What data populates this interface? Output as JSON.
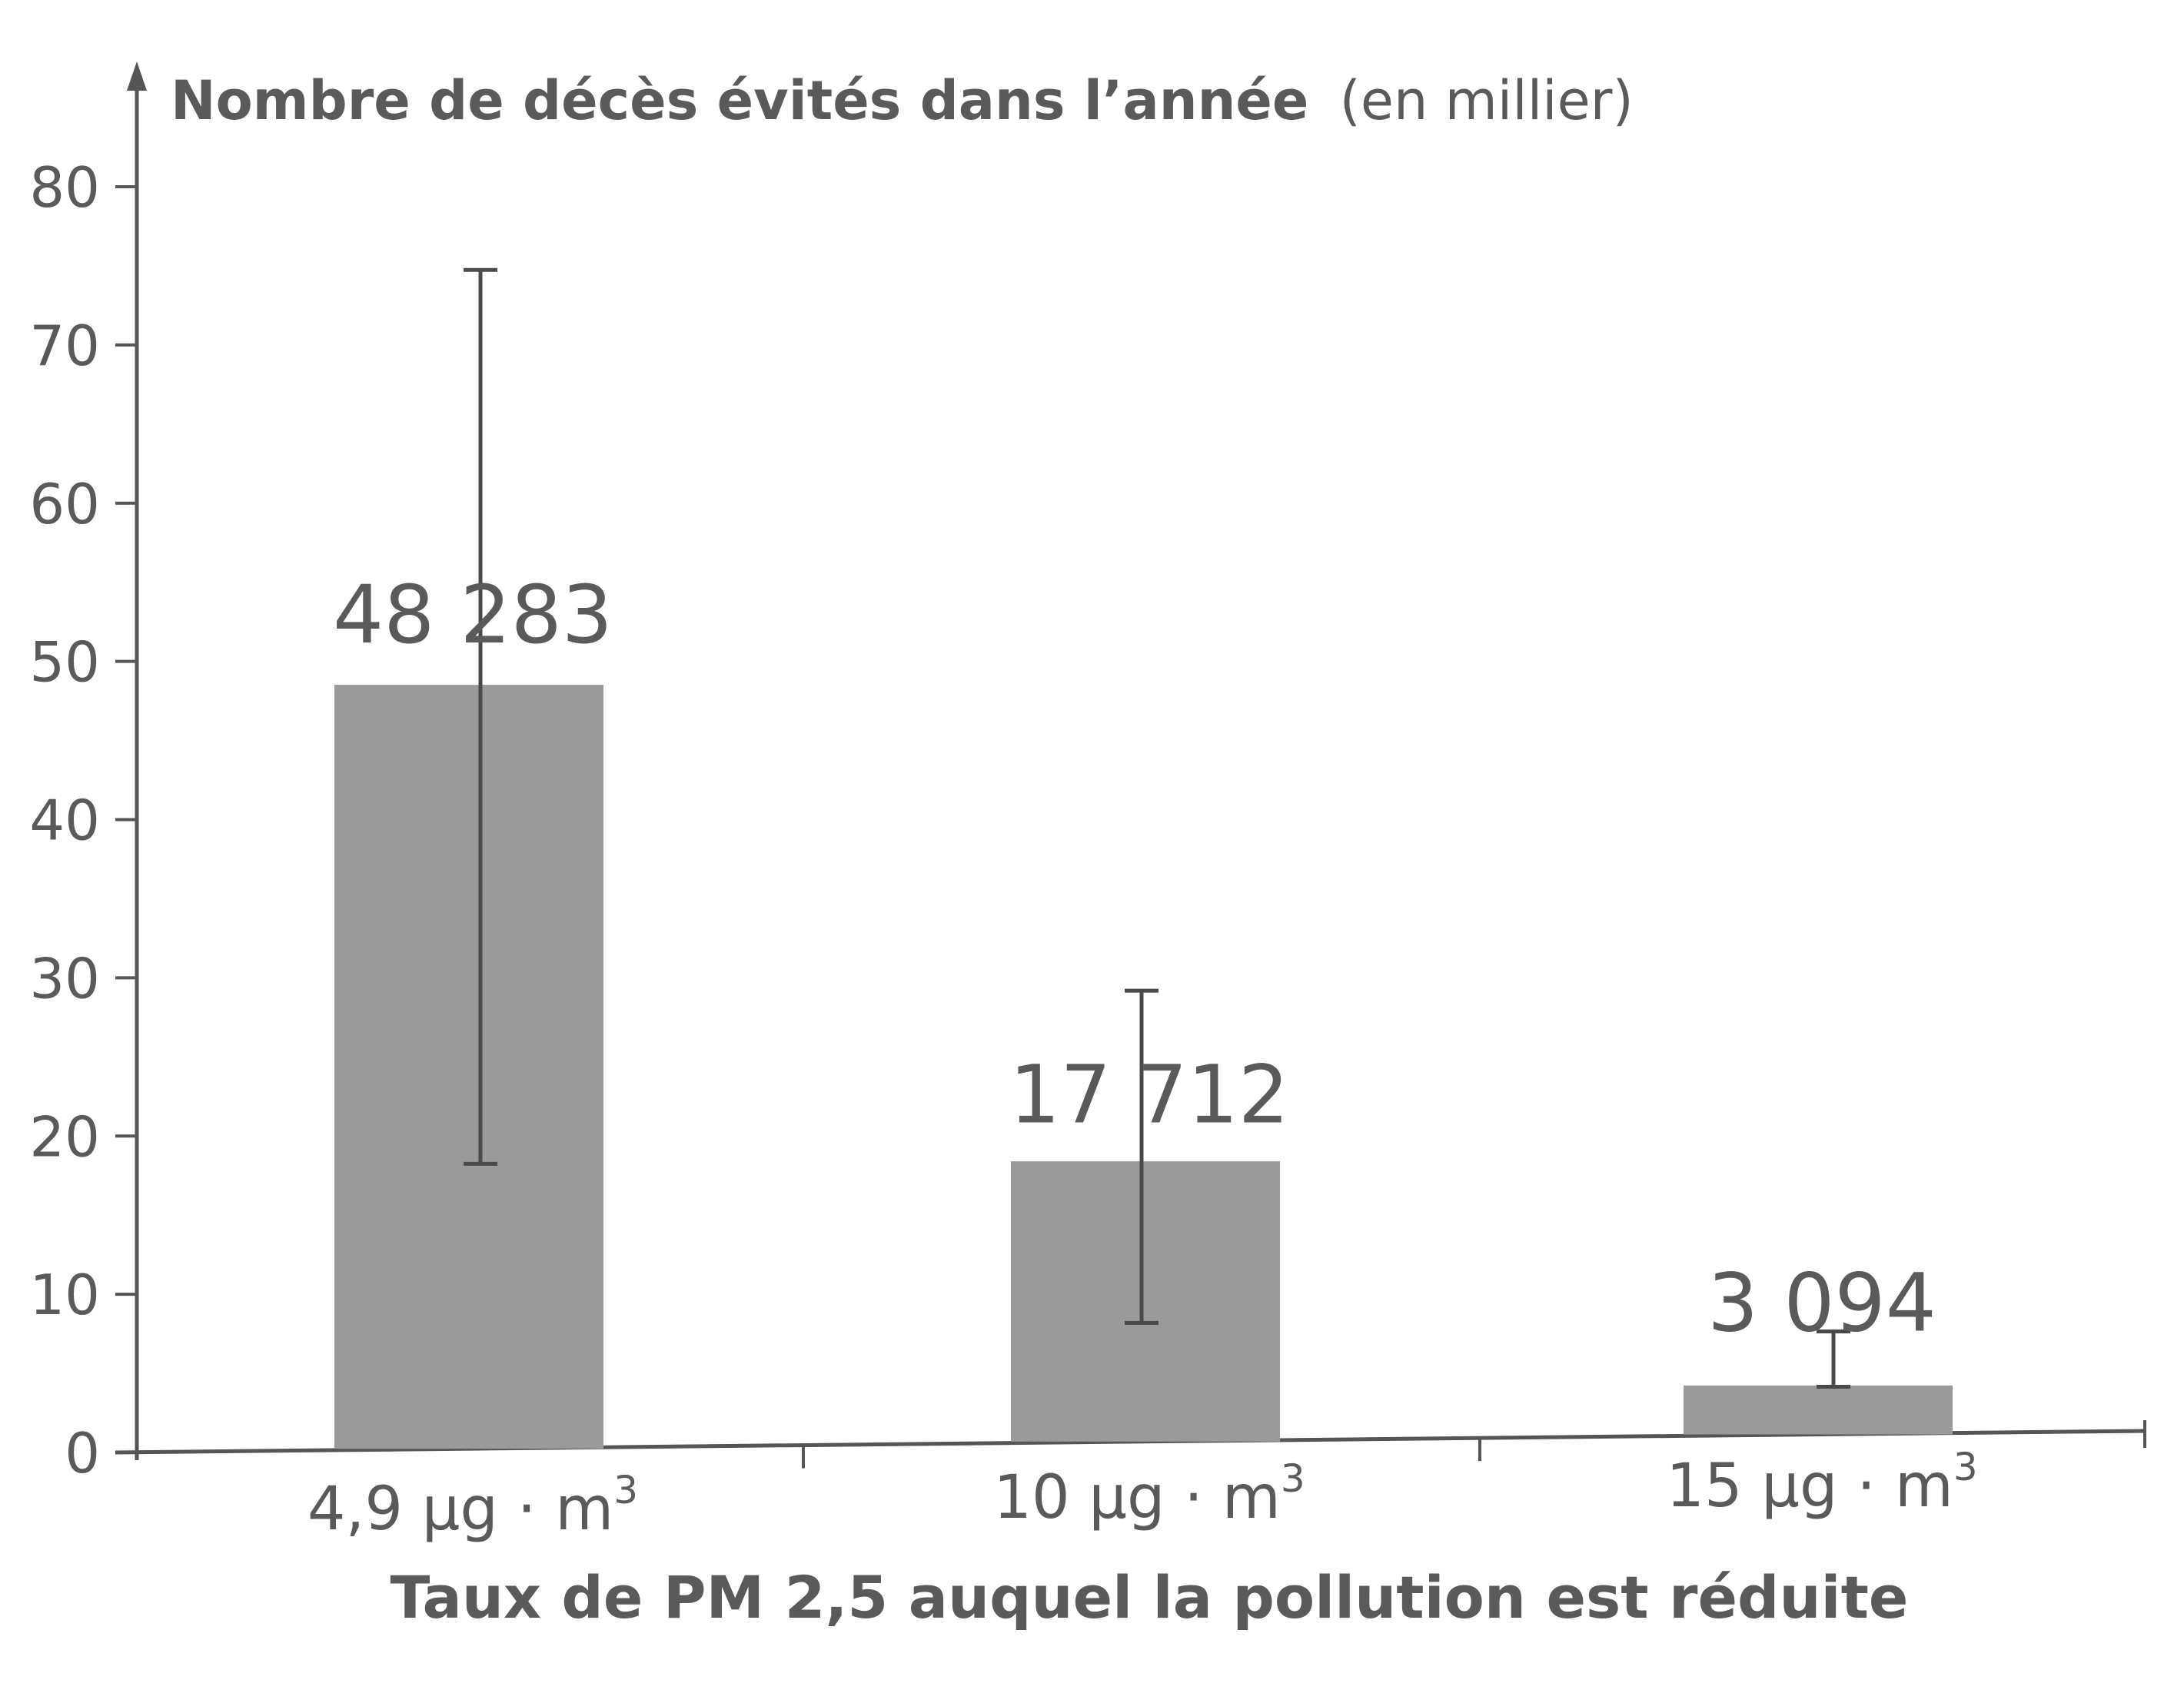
{
  "chart_data": {
    "type": "bar",
    "title": "",
    "ylabel_main": "Nombre de décès évités dans l’année",
    "ylabel_unit": "(en millier)",
    "xlabel": "Taux de PM 2,5 auquel la pollution est réduite",
    "ylim": [
      0,
      80
    ],
    "yticks": [
      0,
      10,
      20,
      30,
      40,
      50,
      60,
      70,
      80
    ],
    "categories": [
      {
        "base": "4,9 µg · m",
        "sup": "3"
      },
      {
        "base": "10 µg · m",
        "sup": "3"
      },
      {
        "base": "15 µg · m",
        "sup": "3"
      }
    ],
    "values": [
      48.283,
      17.712,
      3.094
    ],
    "data_labels": [
      "48 283",
      "17 712",
      "3 094"
    ],
    "error_low": [
      18,
      7.5,
      3
    ],
    "error_high": [
      74.5,
      28.5,
      6.5
    ],
    "grid": false,
    "legend": "none",
    "bar_color": "#9a9a9a",
    "text_color": "#5a5a5a",
    "axis_color": "#555555"
  }
}
